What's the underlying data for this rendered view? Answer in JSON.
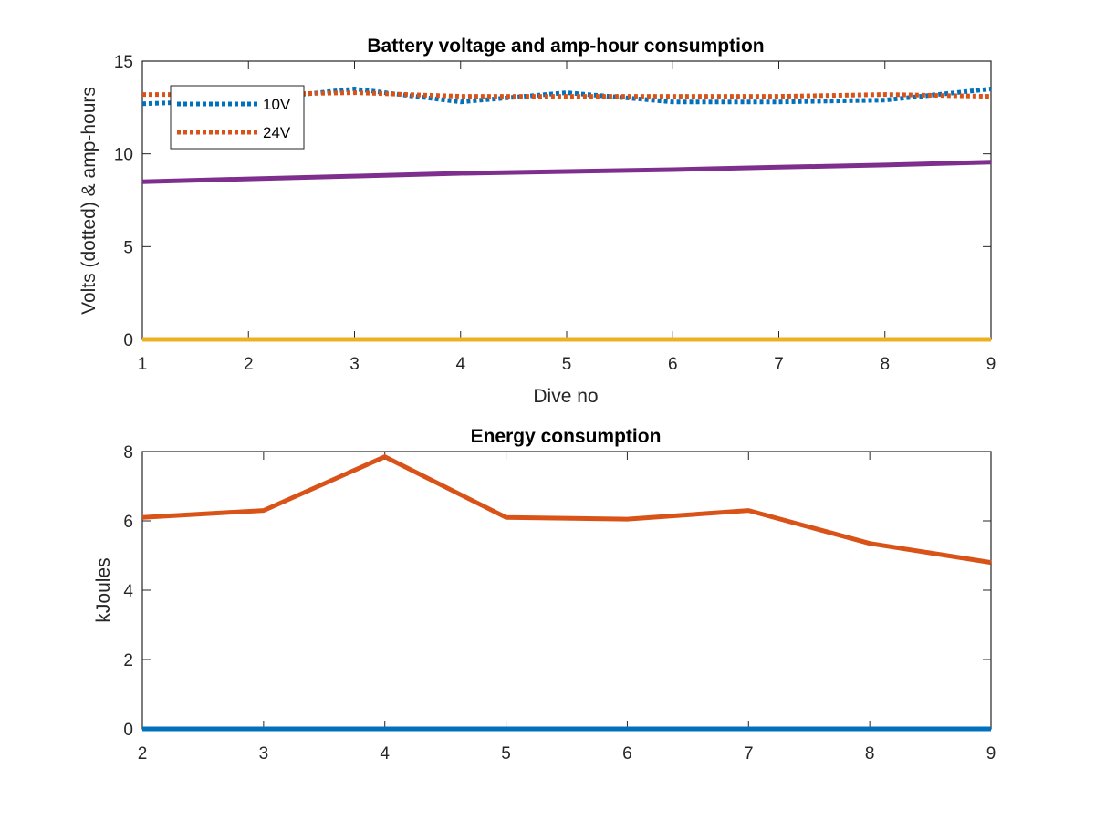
{
  "chart_data": [
    {
      "type": "line",
      "title": "Battery voltage and amp-hour consumption",
      "xlabel": "Dive no",
      "ylabel": "Volts (dotted) & amp-hours",
      "xlim": [
        1,
        9
      ],
      "ylim": [
        0,
        15
      ],
      "xticks": [
        "1",
        "2",
        "3",
        "4",
        "5",
        "6",
        "7",
        "8",
        "9"
      ],
      "yticks": [
        "0",
        "5",
        "10",
        "15"
      ],
      "legend_position": "top-left",
      "grid": false,
      "x": [
        1,
        2,
        3,
        4,
        5,
        6,
        7,
        8,
        9
      ],
      "series": [
        {
          "name": "10V",
          "style": "dotted",
          "color": "#0072BD",
          "values": [
            12.7,
            12.9,
            13.5,
            12.8,
            13.3,
            12.8,
            12.8,
            12.9,
            13.5
          ]
        },
        {
          "name": "24V",
          "style": "dotted",
          "color": "#D95319",
          "values": [
            13.2,
            13.2,
            13.3,
            13.1,
            13.1,
            13.1,
            13.1,
            13.2,
            13.1
          ]
        },
        {
          "style": "solid",
          "color": "#EDB120",
          "values": [
            0,
            0,
            0,
            0,
            0,
            0,
            0,
            0,
            0
          ]
        },
        {
          "style": "solid",
          "color": "#7E2F8E",
          "values": [
            8.5,
            8.65,
            8.8,
            8.95,
            9.05,
            9.15,
            9.28,
            9.4,
            9.55
          ]
        }
      ]
    },
    {
      "type": "line",
      "title": "Energy consumption",
      "xlabel": "",
      "ylabel": "kJoules",
      "xlim": [
        2,
        9
      ],
      "ylim": [
        0,
        8
      ],
      "xticks": [
        "2",
        "3",
        "4",
        "5",
        "6",
        "7",
        "8",
        "9"
      ],
      "yticks": [
        "0",
        "2",
        "4",
        "6",
        "8"
      ],
      "grid": false,
      "x": [
        2,
        3,
        4,
        5,
        6,
        7,
        8,
        9
      ],
      "series": [
        {
          "style": "solid",
          "color": "#0072BD",
          "values": [
            0,
            0,
            0,
            0,
            0,
            0,
            0,
            0
          ]
        },
        {
          "style": "solid",
          "color": "#D95319",
          "values": [
            6.1,
            6.3,
            7.85,
            6.1,
            6.05,
            6.3,
            5.35,
            4.8
          ]
        }
      ]
    }
  ]
}
